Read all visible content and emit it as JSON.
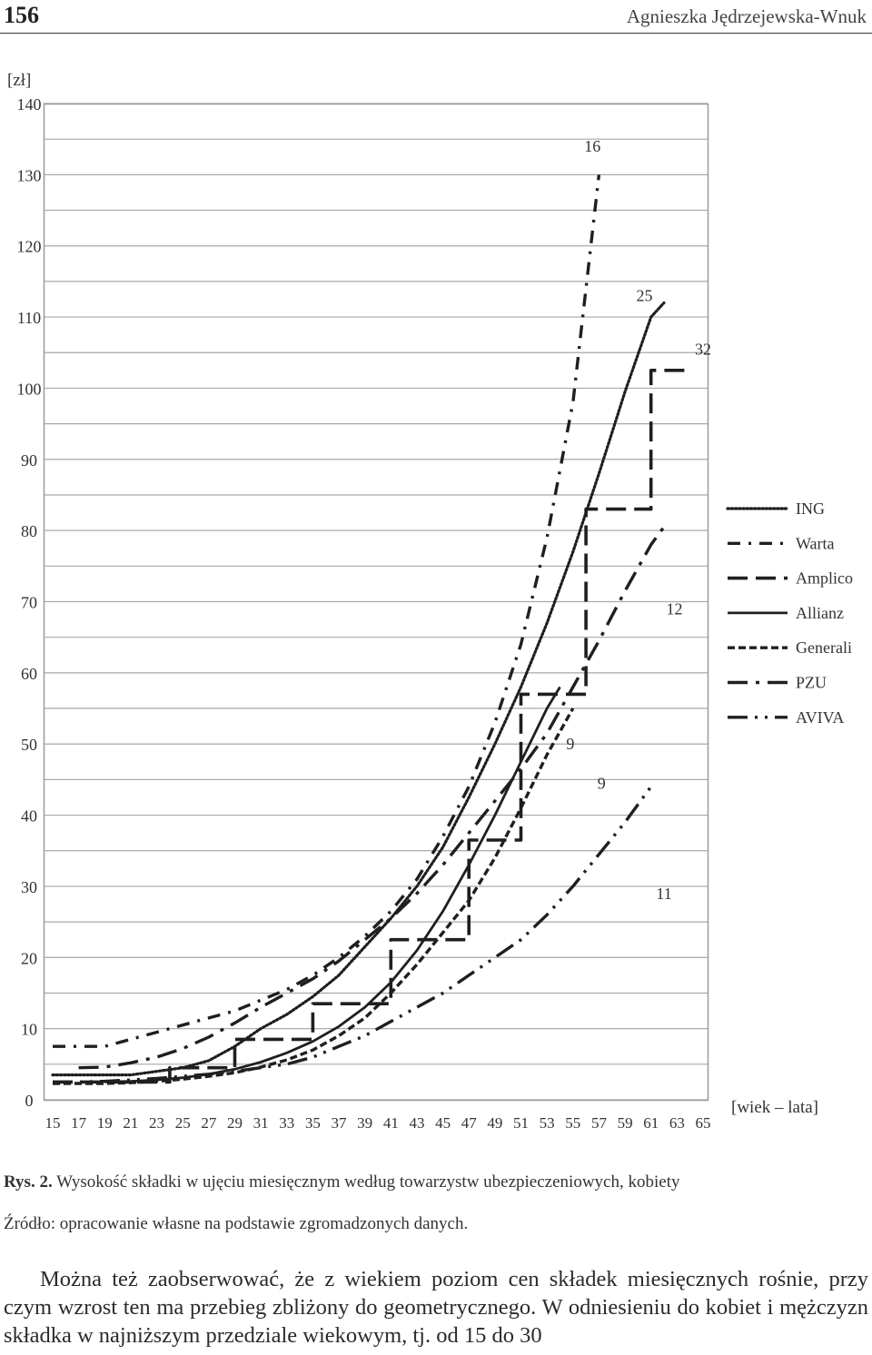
{
  "header": {
    "page_number": "156",
    "author": "Agnieszka Jędrzejewska-Wnuk"
  },
  "chart_data": {
    "type": "line",
    "title": "",
    "ylabel": "[zł]",
    "xlabel": "[wiek – lata]",
    "ylim": [
      0,
      140
    ],
    "xlim": [
      15,
      65
    ],
    "y_ticks": [
      0,
      10,
      20,
      30,
      40,
      50,
      60,
      70,
      80,
      90,
      100,
      110,
      120,
      130,
      140
    ],
    "x_ticks": [
      15,
      17,
      19,
      21,
      23,
      25,
      27,
      29,
      31,
      33,
      35,
      37,
      39,
      41,
      43,
      45,
      47,
      49,
      51,
      53,
      55,
      57,
      59,
      61,
      63,
      65
    ],
    "grid": true,
    "legend": "right",
    "series": [
      {
        "name": "ING",
        "style": "dotted",
        "x": [
          15,
          17,
          19,
          21,
          23,
          25,
          27,
          29,
          31,
          33,
          35,
          37,
          39,
          41,
          43,
          45,
          47,
          49,
          51,
          53,
          55,
          57,
          59,
          61,
          62
        ],
        "y": [
          3.5,
          3.5,
          3.5,
          3.5,
          4,
          4.5,
          5.5,
          7.5,
          10,
          12,
          14.5,
          17.5,
          21.5,
          25.5,
          30,
          35.5,
          42.5,
          50,
          58,
          67,
          77,
          88,
          99.5,
          110,
          112
        ]
      },
      {
        "name": "Warta",
        "style": "dash-dot",
        "x": [
          15,
          17,
          19,
          21,
          23,
          25,
          27,
          29,
          31,
          33,
          35,
          37,
          39,
          41,
          43,
          45,
          47,
          49,
          51,
          53,
          55,
          57
        ],
        "y": [
          7.5,
          7.5,
          7.5,
          8.5,
          9.5,
          10.5,
          11.5,
          12.5,
          14,
          15.5,
          17.5,
          20,
          23,
          26.5,
          31,
          37,
          44,
          53,
          64,
          79,
          98,
          130
        ]
      },
      {
        "name": "Amplico",
        "style": "long-dash",
        "x": [
          15,
          19,
          19,
          24,
          24,
          29,
          29,
          33,
          33,
          35,
          35,
          39,
          39,
          41,
          41,
          44,
          44,
          47,
          47,
          49,
          49,
          51,
          51,
          55,
          55,
          56,
          56,
          60,
          60,
          61,
          61,
          64
        ],
        "y": [
          2.5,
          2.5,
          2.5,
          2.5,
          4.5,
          4.5,
          8.5,
          8.5,
          8.5,
          8.5,
          13.5,
          13.5,
          13.5,
          13.5,
          22.5,
          22.5,
          22.5,
          22.5,
          36.5,
          36.5,
          36.5,
          36.5,
          57,
          57,
          57,
          57,
          83,
          83,
          83,
          83,
          102.5,
          102.5
        ]
      },
      {
        "name": "Allianz",
        "style": "solid",
        "x": [
          19,
          21,
          23,
          25,
          27,
          29,
          31,
          33,
          35,
          37,
          39,
          41,
          43,
          45,
          47,
          49,
          51,
          53,
          54
        ],
        "y": [
          2.5,
          2.6,
          2.8,
          3.1,
          3.6,
          4.3,
          5.3,
          6.6,
          8.2,
          10.3,
          13,
          16.5,
          21,
          26.5,
          33,
          40,
          47.5,
          55,
          58
        ]
      },
      {
        "name": "Generali",
        "style": "short-dash",
        "x": [
          15,
          17,
          19,
          21,
          23,
          25,
          27,
          29,
          31,
          33,
          35,
          37,
          39,
          41,
          43,
          45,
          47,
          49,
          51,
          53,
          55
        ],
        "y": [
          2.3,
          2.3,
          2.3,
          2.4,
          2.6,
          2.9,
          3.3,
          3.8,
          4.6,
          5.6,
          7,
          9,
          11.5,
          15,
          19,
          23.5,
          28,
          34,
          41,
          48.5,
          55
        ]
      },
      {
        "name": "PZU",
        "style": "long-dash-dot",
        "x": [
          17,
          19,
          21,
          23,
          25,
          27,
          29,
          31,
          33,
          35,
          37,
          39,
          41,
          43,
          45,
          47,
          49,
          51,
          53,
          55,
          57,
          59,
          61,
          62
        ],
        "y": [
          4.5,
          4.6,
          5.2,
          6,
          7.2,
          8.8,
          10.8,
          13,
          15,
          17,
          19.5,
          22.5,
          25.5,
          29,
          33,
          37.5,
          42,
          46.5,
          51.5,
          58,
          64.5,
          71.5,
          78,
          80.5
        ]
      },
      {
        "name": "AVIVA",
        "style": "long-dash-dot-dot",
        "x": [
          15,
          17,
          19,
          21,
          23,
          25,
          27,
          29,
          31,
          33,
          35,
          37,
          39,
          41,
          43,
          45,
          47,
          49,
          51,
          53,
          55,
          57,
          59,
          61
        ],
        "y": [
          2.5,
          2.5,
          2.6,
          2.8,
          3,
          3.3,
          3.6,
          4,
          4.5,
          5,
          6,
          7.5,
          9,
          11,
          13,
          15,
          17.5,
          20,
          22.5,
          26,
          30,
          34.5,
          39,
          44
        ]
      }
    ],
    "annotations": [
      {
        "text": "16",
        "x": 56.5,
        "y": 134
      },
      {
        "text": "25",
        "x": 60.5,
        "y": 113
      },
      {
        "text": "32",
        "x": 65,
        "y": 105.5
      },
      {
        "text": "12",
        "x": 62.8,
        "y": 69
      },
      {
        "text": "9",
        "x": 54.8,
        "y": 50
      },
      {
        "text": "9",
        "x": 57.2,
        "y": 44.5
      },
      {
        "text": "11",
        "x": 62,
        "y": 29
      }
    ]
  },
  "caption": {
    "label": "Rys. 2.",
    "text": " Wysokość składki w ujęciu miesięcznym według towarzystw ubezpieczeniowych, kobiety"
  },
  "source": "Źródło: opracowanie własne na podstawie zgromadzonych danych.",
  "body_text": "Można też zaobserwować, że z wiekiem poziom cen składek miesięcznych rośnie, przy czym wzrost ten ma przebieg zbliżony do geometrycznego. W odniesieniu do kobiet i mężczyzn składka w najniższym przedziale wiekowym, tj. od 15 do 30"
}
